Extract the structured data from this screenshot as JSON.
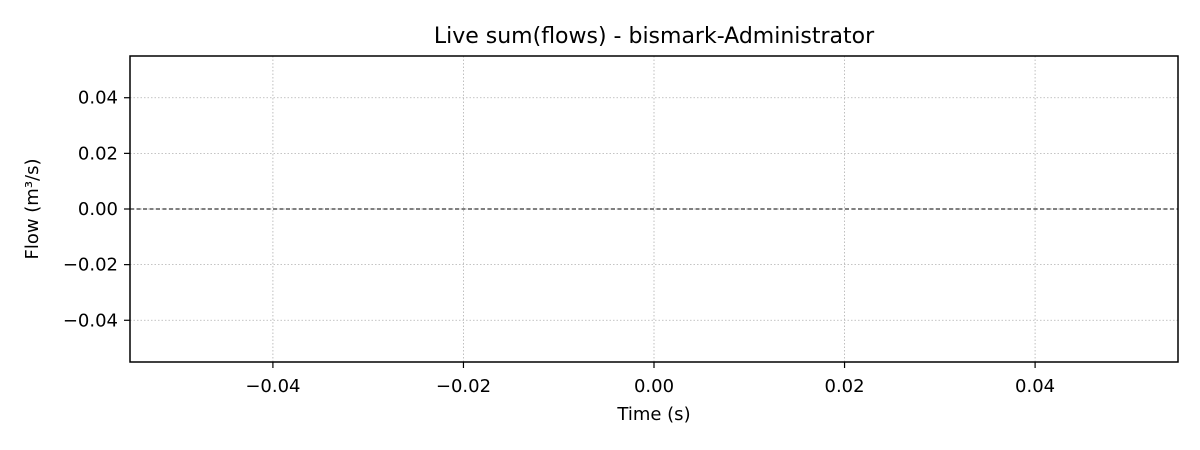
{
  "chart_data": {
    "type": "line",
    "title": "Live sum(flows) - bismark-Administrator",
    "xlabel": "Time (s)",
    "ylabel": "Flow (m³/s)",
    "xlim": [
      -0.055,
      0.055
    ],
    "ylim": [
      -0.055,
      0.055
    ],
    "x_ticks": [
      -0.04,
      -0.02,
      0.0,
      0.02,
      0.04
    ],
    "y_ticks": [
      -0.04,
      -0.02,
      0.0,
      0.02,
      0.04
    ],
    "x_tick_labels": [
      "−0.04",
      "−0.02",
      "0.00",
      "0.02",
      "0.04"
    ],
    "y_tick_labels": [
      "−0.04",
      "−0.02",
      "0.00",
      "0.02",
      "0.04"
    ],
    "series": [],
    "reference_lines": [
      {
        "orientation": "horizontal",
        "y": 0.0,
        "style": "dashed",
        "color": "#000000"
      }
    ],
    "grid": true,
    "grid_style": "dotted",
    "legend": "none"
  }
}
